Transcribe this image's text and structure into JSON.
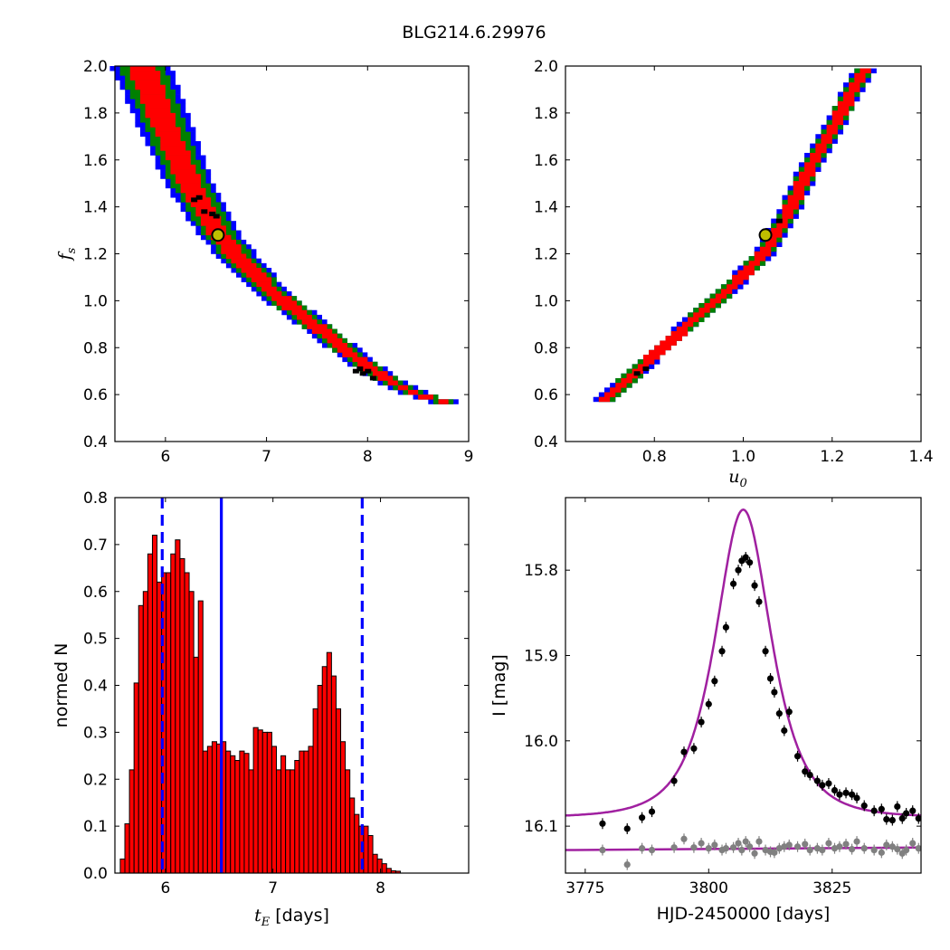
{
  "figure": {
    "title": "BLG214.6.29976"
  },
  "colors": {
    "contour_outer": "#0000ff",
    "contour_mid": "#008000",
    "contour_inner": "#ff0000",
    "chain_points": "#000000",
    "best_fit_marker_fill": "#bfbf00",
    "histogram_bar": "#ff0000",
    "marker_line": "#0000ff",
    "model_curve": "#a020a0",
    "data_primary": "#000000",
    "data_secondary": "#808080"
  },
  "chart_data": [
    {
      "id": "fs_vs_tE",
      "type": "heatmap",
      "xlabel": "",
      "ylabel_symbol": "f",
      "ylabel_sub": "s",
      "xlim": [
        5.5,
        9.0
      ],
      "ylim": [
        0.4,
        2.0
      ],
      "xticks": [
        "6",
        "7",
        "8",
        "9"
      ],
      "xtick_values": [
        6,
        7,
        8,
        9
      ],
      "yticks": [
        "0.4",
        "0.6",
        "0.8",
        "1.0",
        "1.2",
        "1.4",
        "1.6",
        "1.8",
        "2.0"
      ],
      "ytick_values": [
        0.4,
        0.6,
        0.8,
        1.0,
        1.2,
        1.4,
        1.6,
        1.8,
        2.0
      ],
      "ridge": [
        [
          5.75,
          2.0
        ],
        [
          6.0,
          1.73
        ],
        [
          6.25,
          1.48
        ],
        [
          6.52,
          1.28
        ],
        [
          6.75,
          1.16
        ],
        [
          7.0,
          1.05
        ],
        [
          7.25,
          0.96
        ],
        [
          7.5,
          0.88
        ],
        [
          7.75,
          0.79
        ],
        [
          8.0,
          0.71
        ],
        [
          8.25,
          0.64
        ],
        [
          8.5,
          0.59
        ],
        [
          8.75,
          0.56
        ]
      ],
      "chain_points": [
        [
          6.28,
          1.43
        ],
        [
          6.33,
          1.44
        ],
        [
          6.38,
          1.38
        ],
        [
          6.46,
          1.37
        ],
        [
          6.5,
          1.36
        ],
        [
          7.88,
          0.7
        ],
        [
          7.95,
          0.69
        ],
        [
          8.0,
          0.7
        ],
        [
          8.05,
          0.67
        ],
        [
          7.92,
          0.71
        ]
      ],
      "best_fit": [
        6.52,
        1.28
      ]
    },
    {
      "id": "fs_vs_u0",
      "type": "heatmap",
      "xlabel_symbol": "u",
      "xlabel_sub": "0",
      "xlim": [
        0.6,
        1.4
      ],
      "ylim": [
        0.4,
        2.0
      ],
      "xticks": [
        "0.8",
        "1.0",
        "1.2",
        "1.4"
      ],
      "xtick_values": [
        0.8,
        1.0,
        1.2,
        1.4
      ],
      "yticks": [
        "0.4",
        "0.6",
        "0.8",
        "1.0",
        "1.2",
        "1.4",
        "1.6",
        "1.8",
        "2.0"
      ],
      "ytick_values": [
        0.4,
        0.6,
        0.8,
        1.0,
        1.2,
        1.4,
        1.6,
        1.8,
        2.0
      ],
      "ridge": [
        [
          0.69,
          0.57
        ],
        [
          0.75,
          0.67
        ],
        [
          0.8,
          0.76
        ],
        [
          0.85,
          0.84
        ],
        [
          0.9,
          0.93
        ],
        [
          0.95,
          1.01
        ],
        [
          1.0,
          1.1
        ],
        [
          1.05,
          1.2
        ],
        [
          1.1,
          1.36
        ],
        [
          1.15,
          1.56
        ],
        [
          1.2,
          1.72
        ],
        [
          1.25,
          1.9
        ],
        [
          1.28,
          1.99
        ]
      ],
      "chain_points": [
        [
          0.76,
          0.69
        ],
        [
          0.78,
          0.71
        ],
        [
          1.08,
          1.34
        ]
      ],
      "best_fit": [
        1.05,
        1.28
      ]
    },
    {
      "id": "tE_histogram",
      "type": "bar",
      "xlabel_symbol": "t",
      "xlabel_sub": "E",
      "xlabel_suffix": " [days]",
      "ylabel": "normed N",
      "xlim": [
        5.53,
        8.82
      ],
      "ylim": [
        0.0,
        0.8
      ],
      "xticks": [
        "6",
        "7",
        "8"
      ],
      "xtick_values": [
        6,
        7,
        8
      ],
      "yticks": [
        "0.0",
        "0.1",
        "0.2",
        "0.3",
        "0.4",
        "0.5",
        "0.6",
        "0.7",
        "0.8"
      ],
      "ytick_values": [
        0.0,
        0.1,
        0.2,
        0.3,
        0.4,
        0.5,
        0.6,
        0.7,
        0.8
      ],
      "bin_start": 5.58,
      "bin_width": 0.0427,
      "values": [
        0.03,
        0.105,
        0.22,
        0.405,
        0.57,
        0.6,
        0.68,
        0.72,
        0.62,
        0.64,
        0.64,
        0.68,
        0.71,
        0.67,
        0.64,
        0.6,
        0.46,
        0.58,
        0.26,
        0.27,
        0.28,
        0.275,
        0.28,
        0.26,
        0.25,
        0.24,
        0.26,
        0.255,
        0.22,
        0.31,
        0.305,
        0.3,
        0.3,
        0.27,
        0.22,
        0.25,
        0.22,
        0.22,
        0.24,
        0.26,
        0.26,
        0.27,
        0.35,
        0.4,
        0.44,
        0.47,
        0.42,
        0.35,
        0.28,
        0.22,
        0.16,
        0.125,
        0.1,
        0.1,
        0.08,
        0.04,
        0.03,
        0.02,
        0.01,
        0.005,
        0.004
      ],
      "vlines": [
        {
          "x": 5.97,
          "style": "dashed"
        },
        {
          "x": 6.52,
          "style": "solid"
        },
        {
          "x": 7.83,
          "style": "dashed"
        }
      ]
    },
    {
      "id": "light_curve",
      "type": "scatter",
      "xlabel": "HJD-2450000 [days]",
      "ylabel": "I [mag]",
      "xlim": [
        3771,
        3843
      ],
      "ylim": [
        16.155,
        15.715
      ],
      "xticks": [
        "3775",
        "3800",
        "3825"
      ],
      "xtick_values": [
        3775,
        3800,
        3825
      ],
      "yticks": [
        "15.8",
        "15.9",
        "16.0",
        "16.1"
      ],
      "ytick_values": [
        15.8,
        15.9,
        16.0,
        16.1
      ],
      "model": {
        "t0": 3807.0,
        "tE": 6.52,
        "u0": 1.05,
        "fs": 1.28,
        "baseline": 16.09
      },
      "secondary_baseline": [
        [
          3771,
          16.128
        ],
        [
          3843,
          16.125
        ]
      ],
      "points": [
        [
          3778.5,
          16.097
        ],
        [
          3783.5,
          16.103
        ],
        [
          3786.5,
          16.09
        ],
        [
          3788.5,
          16.083
        ],
        [
          3793.0,
          16.047
        ],
        [
          3795.0,
          16.013
        ],
        [
          3797.0,
          16.009
        ],
        [
          3798.5,
          15.978
        ],
        [
          3800.0,
          15.957
        ],
        [
          3801.2,
          15.93
        ],
        [
          3802.7,
          15.895
        ],
        [
          3803.5,
          15.867
        ],
        [
          3805.0,
          15.816
        ],
        [
          3806.0,
          15.8
        ],
        [
          3806.7,
          15.789
        ],
        [
          3807.5,
          15.785
        ],
        [
          3808.3,
          15.791
        ],
        [
          3809.3,
          15.818
        ],
        [
          3810.2,
          15.837
        ],
        [
          3811.5,
          15.895
        ],
        [
          3812.5,
          15.927
        ],
        [
          3813.3,
          15.943
        ],
        [
          3814.3,
          15.968
        ],
        [
          3815.3,
          15.988
        ],
        [
          3816.3,
          15.966
        ],
        [
          3818.0,
          16.018
        ],
        [
          3819.5,
          16.036
        ],
        [
          3820.5,
          16.04
        ],
        [
          3822.0,
          16.047
        ],
        [
          3823.0,
          16.052
        ],
        [
          3824.3,
          16.05
        ],
        [
          3825.5,
          16.058
        ],
        [
          3826.5,
          16.063
        ],
        [
          3827.8,
          16.061
        ],
        [
          3829.0,
          16.063
        ],
        [
          3830.0,
          16.067
        ],
        [
          3831.5,
          16.076
        ],
        [
          3833.5,
          16.082
        ],
        [
          3835.0,
          16.08
        ],
        [
          3836.0,
          16.092
        ],
        [
          3837.2,
          16.093
        ],
        [
          3838.2,
          16.077
        ],
        [
          3839.2,
          16.091
        ],
        [
          3840.0,
          16.085
        ],
        [
          3841.3,
          16.082
        ],
        [
          3842.5,
          16.091
        ]
      ],
      "points_secondary": [
        [
          3778.5,
          16.128
        ],
        [
          3783.5,
          16.145
        ],
        [
          3786.5,
          16.126
        ],
        [
          3788.5,
          16.128
        ],
        [
          3793.0,
          16.125
        ],
        [
          3795.0,
          16.115
        ],
        [
          3797.0,
          16.125
        ],
        [
          3798.5,
          16.12
        ],
        [
          3800.0,
          16.126
        ],
        [
          3801.2,
          16.122
        ],
        [
          3802.7,
          16.128
        ],
        [
          3803.5,
          16.126
        ],
        [
          3805.0,
          16.125
        ],
        [
          3806.0,
          16.12
        ],
        [
          3806.7,
          16.128
        ],
        [
          3807.5,
          16.118
        ],
        [
          3808.3,
          16.124
        ],
        [
          3809.3,
          16.132
        ],
        [
          3810.2,
          16.118
        ],
        [
          3811.5,
          16.128
        ],
        [
          3812.5,
          16.13
        ],
        [
          3813.3,
          16.131
        ],
        [
          3814.3,
          16.126
        ],
        [
          3815.3,
          16.124
        ],
        [
          3816.3,
          16.122
        ],
        [
          3818.0,
          16.124
        ],
        [
          3819.5,
          16.121
        ],
        [
          3820.5,
          16.128
        ],
        [
          3822.0,
          16.126
        ],
        [
          3823.0,
          16.128
        ],
        [
          3824.3,
          16.12
        ],
        [
          3825.5,
          16.126
        ],
        [
          3826.5,
          16.124
        ],
        [
          3827.8,
          16.121
        ],
        [
          3829.0,
          16.127
        ],
        [
          3830.0,
          16.118
        ],
        [
          3831.5,
          16.126
        ],
        [
          3833.5,
          16.128
        ],
        [
          3835.0,
          16.131
        ],
        [
          3836.0,
          16.122
        ],
        [
          3837.2,
          16.124
        ],
        [
          3838.2,
          16.127
        ],
        [
          3839.2,
          16.132
        ],
        [
          3840.0,
          16.128
        ],
        [
          3841.3,
          16.12
        ],
        [
          3842.5,
          16.126
        ]
      ]
    }
  ]
}
